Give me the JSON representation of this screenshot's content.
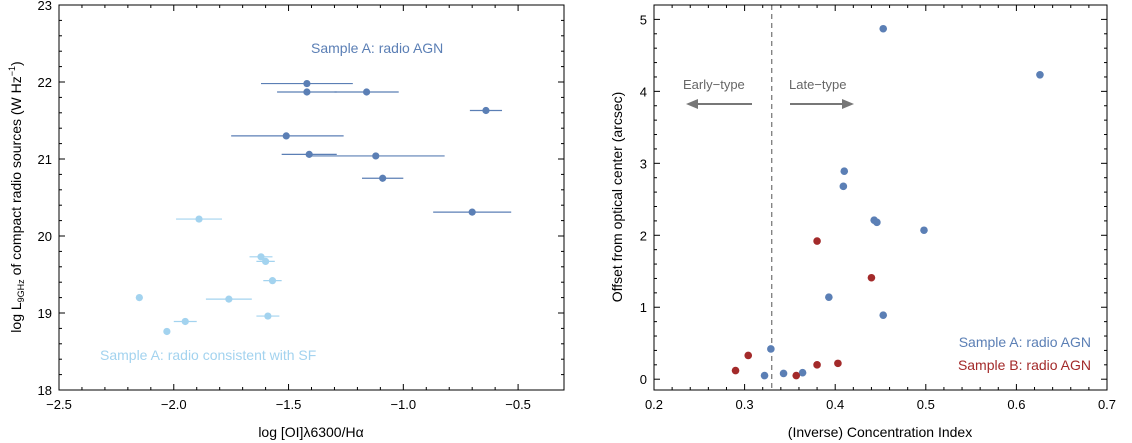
{
  "chart_data": [
    {
      "type": "scatter",
      "xlabel": "log [OI]λ6300/Hα",
      "ylabel": {
        "prefix": "log L",
        "subscript": "9GHz",
        "middle": " of compact radio sources (W Hz",
        "superscript": "−1",
        "suffix": ")"
      },
      "xlim": [
        -2.5,
        -0.3
      ],
      "ylim": [
        18,
        23
      ],
      "xticks": [
        -2.5,
        -2.0,
        -1.5,
        -1.0,
        -0.5
      ],
      "xtick_labels": [
        "−2.5",
        "−2.0",
        "−1.5",
        "−1.0",
        "−0.5"
      ],
      "yticks": [
        18,
        19,
        20,
        21,
        22,
        23
      ],
      "ytick_labels": [
        "18",
        "19",
        "20",
        "21",
        "22",
        "23"
      ],
      "series": [
        {
          "name": "Sample A: radio AGN",
          "color": "#5b7fb5",
          "points": [
            {
              "x": -1.42,
              "y": 21.98,
              "xerr": [
                0.2,
                0.2
              ]
            },
            {
              "x": -1.42,
              "y": 21.87,
              "xerr": [
                0.13,
                0.13
              ]
            },
            {
              "x": -1.16,
              "y": 21.87,
              "xerr": [
                0.14,
                0.14
              ]
            },
            {
              "x": -0.64,
              "y": 21.63,
              "xerr": [
                0.07,
                0.07
              ]
            },
            {
              "x": -1.51,
              "y": 21.3,
              "xerr": [
                0.24,
                0.25
              ]
            },
            {
              "x": -1.41,
              "y": 21.06,
              "xerr": [
                0.12,
                0.12
              ]
            },
            {
              "x": -1.12,
              "y": 21.04,
              "xerr": [
                0.28,
                0.3
              ]
            },
            {
              "x": -1.09,
              "y": 20.75,
              "xerr": [
                0.09,
                0.09
              ]
            },
            {
              "x": -0.7,
              "y": 20.31,
              "xerr": [
                0.17,
                0.17
              ]
            }
          ]
        },
        {
          "name": "Sample A: radio consistent with SF",
          "color": "#a3d3ef",
          "points": [
            {
              "x": -1.89,
              "y": 20.22,
              "xerr": [
                0.1,
                0.1
              ]
            },
            {
              "x": -1.62,
              "y": 19.73,
              "xerr": [
                0.05,
                0.05
              ]
            },
            {
              "x": -1.6,
              "y": 19.67,
              "xerr": [
                0.04,
                0.04
              ]
            },
            {
              "x": -1.57,
              "y": 19.42,
              "xerr": [
                0.04,
                0.04
              ]
            },
            {
              "x": -2.15,
              "y": 19.2,
              "xerr": [
                0,
                0
              ]
            },
            {
              "x": -1.76,
              "y": 19.18,
              "xerr": [
                0.1,
                0.1
              ]
            },
            {
              "x": -1.59,
              "y": 18.96,
              "xerr": [
                0.05,
                0.05
              ]
            },
            {
              "x": -1.95,
              "y": 18.89,
              "xerr": [
                0.05,
                0.05
              ]
            },
            {
              "x": -2.03,
              "y": 18.76,
              "xerr": [
                0,
                0
              ]
            }
          ]
        }
      ],
      "annotations": [
        {
          "text": "Sample A: radio AGN",
          "color": "#5b7fb5"
        },
        {
          "text": "Sample A: radio consistent with SF",
          "color": "#a3d3ef"
        }
      ]
    },
    {
      "type": "scatter",
      "xlabel": "(Inverse) Concentration Index",
      "ylabel": "Offset from optical center (arcsec)",
      "xlim": [
        0.2,
        0.7
      ],
      "ylim": [
        -0.15,
        5.2
      ],
      "xticks": [
        0.2,
        0.3,
        0.4,
        0.5,
        0.6,
        0.7
      ],
      "xtick_labels": [
        "0.2",
        "0.3",
        "0.4",
        "0.5",
        "0.6",
        "0.7"
      ],
      "yticks": [
        0,
        1,
        2,
        3,
        4,
        5
      ],
      "ytick_labels": [
        "0",
        "1",
        "2",
        "3",
        "4",
        "5"
      ],
      "divider_x": 0.33,
      "region_labels": {
        "left": "Early−type",
        "right": "Late−type"
      },
      "series": [
        {
          "name": "Sample A: radio AGN",
          "color": "#5b7fb5",
          "points": [
            {
              "x": 0.453,
              "y": 4.87
            },
            {
              "x": 0.626,
              "y": 4.23
            },
            {
              "x": 0.41,
              "y": 2.89
            },
            {
              "x": 0.409,
              "y": 2.68
            },
            {
              "x": 0.443,
              "y": 2.21
            },
            {
              "x": 0.446,
              "y": 2.18
            },
            {
              "x": 0.498,
              "y": 2.07
            },
            {
              "x": 0.393,
              "y": 1.14
            },
            {
              "x": 0.453,
              "y": 0.89
            },
            {
              "x": 0.329,
              "y": 0.42
            },
            {
              "x": 0.343,
              "y": 0.08
            },
            {
              "x": 0.364,
              "y": 0.09
            },
            {
              "x": 0.322,
              "y": 0.05
            }
          ]
        },
        {
          "name": "Sample B: radio AGN",
          "color": "#a32a2a",
          "points": [
            {
              "x": 0.38,
              "y": 1.92
            },
            {
              "x": 0.44,
              "y": 1.41
            },
            {
              "x": 0.304,
              "y": 0.33
            },
            {
              "x": 0.38,
              "y": 0.2
            },
            {
              "x": 0.403,
              "y": 0.22
            },
            {
              "x": 0.29,
              "y": 0.12
            },
            {
              "x": 0.357,
              "y": 0.05
            }
          ]
        }
      ],
      "legend": {
        "placement": "bottom-right",
        "entries": [
          {
            "text": "Sample A: radio AGN",
            "color": "#5b7fb5"
          },
          {
            "text": "Sample B: radio AGN",
            "color": "#a32a2a"
          }
        ]
      }
    }
  ]
}
